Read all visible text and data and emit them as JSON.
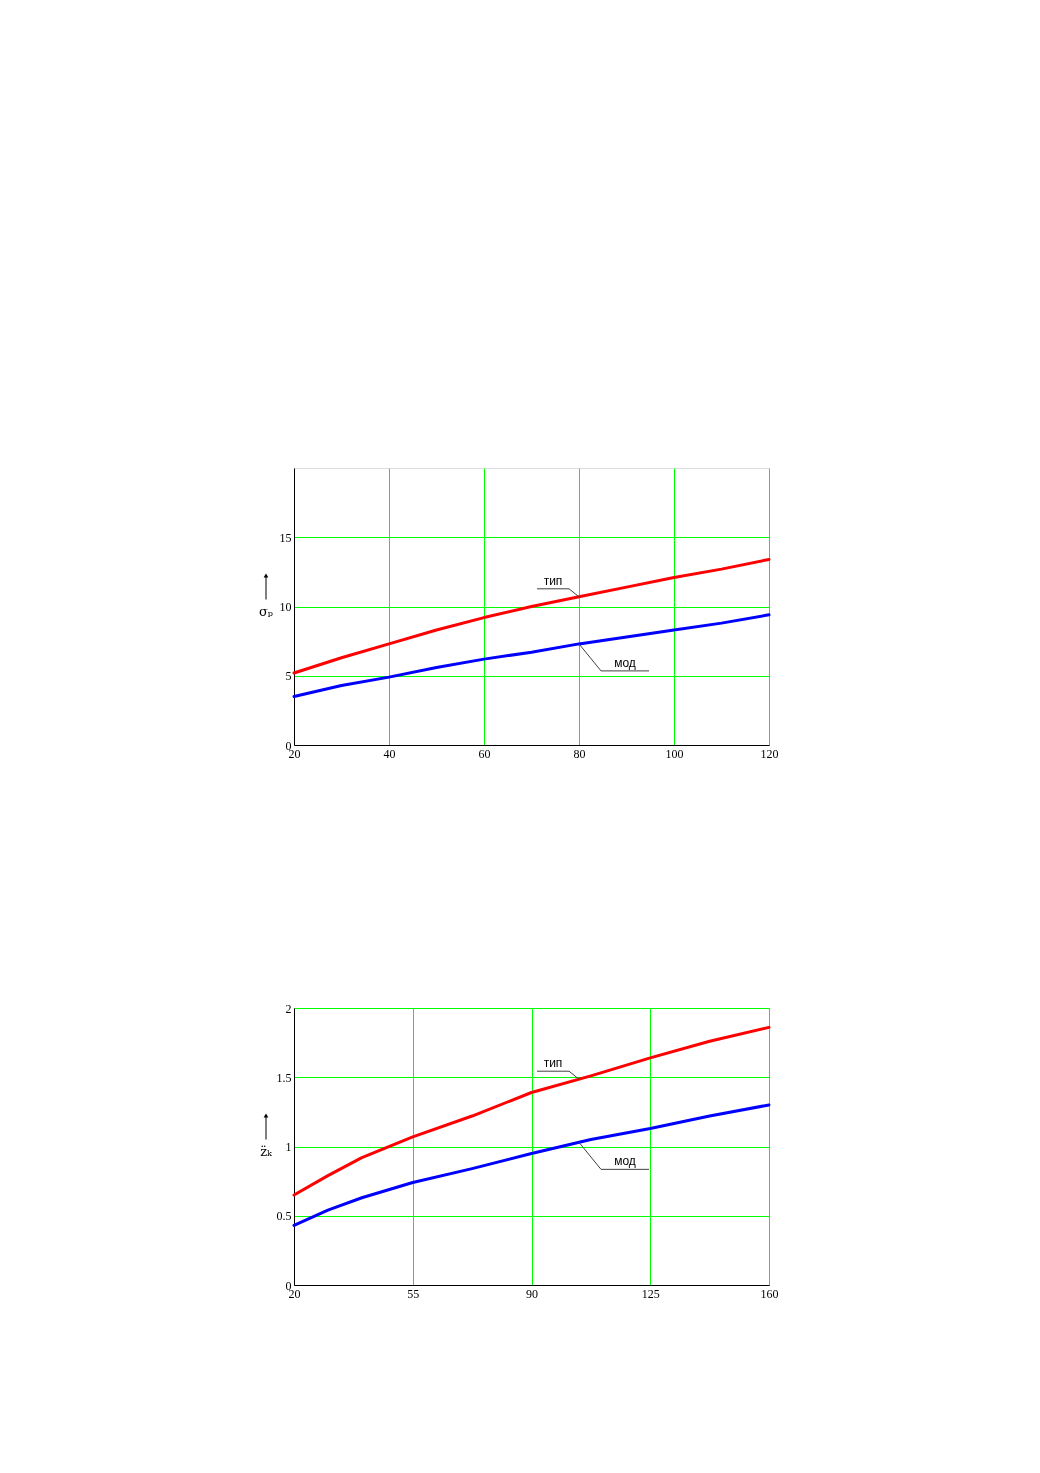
{
  "chart_data": [
    {
      "type": "line",
      "ylabel": "σₚ",
      "x": [
        20,
        30,
        40,
        50,
        60,
        70,
        80,
        90,
        100,
        110,
        120
      ],
      "xlim": [
        20,
        120
      ],
      "xticks": [
        20,
        40,
        60,
        80,
        100,
        120
      ],
      "ylim": [
        0,
        20
      ],
      "yticks": [
        0,
        5,
        10,
        15
      ],
      "grid": true,
      "series": [
        {
          "name": "тип",
          "color": "#ff0000",
          "values": [
            5.2,
            6.3,
            7.3,
            8.3,
            9.2,
            10.0,
            10.7,
            11.4,
            12.1,
            12.7,
            13.4
          ]
        },
        {
          "name": "мод",
          "color": "#0000ff",
          "values": [
            3.5,
            4.3,
            4.9,
            5.6,
            6.2,
            6.7,
            7.3,
            7.8,
            8.3,
            8.8,
            9.4
          ]
        }
      ]
    },
    {
      "type": "line",
      "ylabel": "z̈ₖ",
      "x": [
        20,
        30,
        40,
        55,
        72.5,
        90,
        107.5,
        125,
        142.5,
        160
      ],
      "xlim": [
        20,
        160
      ],
      "xticks": [
        20,
        55,
        90,
        125,
        160
      ],
      "ylim": [
        0,
        2
      ],
      "yticks": [
        0,
        0.5,
        1,
        1.5,
        2
      ],
      "grid": true,
      "series": [
        {
          "name": "тип",
          "color": "#ff0000",
          "values": [
            0.65,
            0.79,
            0.92,
            1.07,
            1.22,
            1.39,
            1.51,
            1.64,
            1.76,
            1.86
          ]
        },
        {
          "name": "мод",
          "color": "#0000ff",
          "values": [
            0.43,
            0.54,
            0.63,
            0.74,
            0.84,
            0.95,
            1.05,
            1.13,
            1.22,
            1.3
          ]
        }
      ]
    }
  ]
}
